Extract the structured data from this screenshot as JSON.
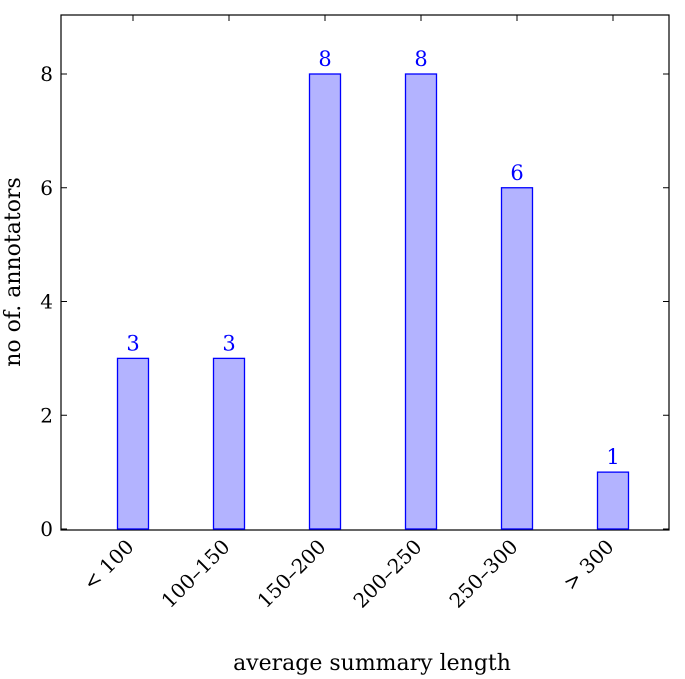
{
  "chart_data": {
    "type": "bar",
    "categories": [
      "< 100",
      "100–150",
      "150–200",
      "200–250",
      "250–300",
      "> 300"
    ],
    "values": [
      3,
      3,
      8,
      8,
      6,
      1
    ],
    "data_labels": [
      "3",
      "3",
      "8",
      "8",
      "6",
      "1"
    ],
    "title": "",
    "xlabel": "average summary length",
    "ylabel": "no of. annotators",
    "ylim": [
      0,
      9
    ],
    "yticks": [
      0,
      2,
      4,
      6,
      8
    ],
    "grid": false,
    "colors": {
      "bar_fill": "#b3b3ff",
      "bar_stroke": "#0000ff",
      "label": "#0000ff",
      "axis": "#000000"
    }
  }
}
